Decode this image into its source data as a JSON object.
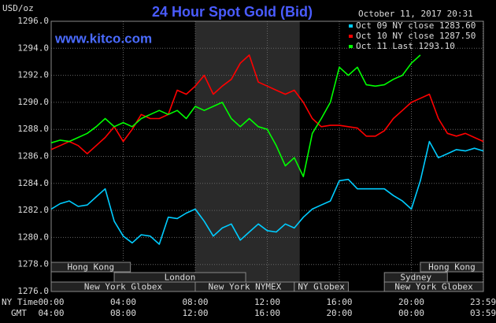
{
  "chart_data": {
    "type": "line",
    "title": "24 Hour Spot Gold (Bid)",
    "subtitle": "www.kitco.com",
    "timestamp": "October 11, 2017 20:31",
    "y_label": "USD/oz",
    "x_label": "NY Time",
    "x2_label": "GMT",
    "x": [
      0,
      0.5,
      1,
      1.5,
      2,
      2.5,
      3,
      3.5,
      4,
      4.5,
      5,
      5.5,
      6,
      6.5,
      7,
      7.5,
      8,
      8.5,
      9,
      9.5,
      10,
      10.5,
      11,
      11.5,
      12,
      12.5,
      13,
      13.5,
      14,
      14.5,
      15,
      15.5,
      16,
      16.5,
      17,
      17.5,
      18,
      18.5,
      19,
      19.5,
      20,
      20.5,
      21,
      21.5,
      22,
      22.5,
      23,
      23.5,
      24
    ],
    "series": [
      {
        "name": "Oct 09 NY close 1283.60",
        "color": "#00ccff",
        "values": [
          1282.1,
          1282.5,
          1282.7,
          1282.3,
          1282.4,
          1283.0,
          1283.6,
          1281.2,
          1280.1,
          1279.6,
          1280.2,
          1280.1,
          1279.5,
          1281.5,
          1281.4,
          1281.8,
          1282.1,
          1281.2,
          1280.1,
          1280.7,
          1281.0,
          1279.8,
          1280.4,
          1281.0,
          1280.5,
          1280.4,
          1281.0,
          1280.7,
          1281.5,
          1282.1,
          1282.4,
          1282.7,
          1284.2,
          1284.3,
          1283.6,
          1283.6,
          1283.6,
          1283.6,
          1283.1,
          1282.7,
          1282.1,
          1284.2,
          1287.1,
          1285.9,
          1286.2,
          1286.5,
          1286.4,
          1286.6,
          1286.4
        ]
      },
      {
        "name": "Oct 10 NY close 1287.50",
        "color": "#ff0000",
        "values": [
          1286.5,
          1286.8,
          1287.1,
          1286.8,
          1286.2,
          1286.8,
          1287.4,
          1288.2,
          1287.1,
          1288.0,
          1289.1,
          1288.8,
          1288.8,
          1289.1,
          1290.9,
          1290.6,
          1291.2,
          1292.0,
          1290.6,
          1291.2,
          1291.7,
          1292.9,
          1293.5,
          1291.5,
          1291.2,
          1290.9,
          1290.6,
          1290.9,
          1290.0,
          1288.8,
          1288.2,
          1288.3,
          1288.3,
          1288.2,
          1288.1,
          1287.5,
          1287.5,
          1287.9,
          1288.8,
          1289.4,
          1290.0,
          1290.3,
          1290.6,
          1288.8,
          1287.7,
          1287.5,
          1287.7,
          1287.4,
          1287.1
        ]
      },
      {
        "name": "Oct 11 Last 1293.10",
        "color": "#00ff00",
        "values": [
          1287.0,
          1287.2,
          1287.1,
          1287.4,
          1287.7,
          1288.2,
          1288.8,
          1288.2,
          1288.5,
          1288.2,
          1288.8,
          1289.1,
          1289.4,
          1289.1,
          1289.4,
          1288.8,
          1289.7,
          1289.4,
          1289.7,
          1290.0,
          1288.8,
          1288.2,
          1288.8,
          1288.2,
          1288.0,
          1286.8,
          1285.3,
          1285.9,
          1284.5,
          1287.7,
          1288.8,
          1290.0,
          1292.6,
          1292.0,
          1292.6,
          1291.3,
          1291.2,
          1291.3,
          1291.7,
          1292.0,
          1292.9,
          1293.5,
          null,
          null,
          null,
          null,
          null,
          null,
          null
        ]
      }
    ],
    "xlim": [
      0,
      24
    ],
    "ylim": [
      1276,
      1296
    ],
    "yticks": [
      {
        "value": 1276,
        "label": "1276.0"
      },
      {
        "value": 1278,
        "label": "1278.0"
      },
      {
        "value": 1280,
        "label": "1280.0"
      },
      {
        "value": 1282,
        "label": "1282.0"
      },
      {
        "value": 1284,
        "label": "1284.0"
      },
      {
        "value": 1286,
        "label": "1286.0"
      },
      {
        "value": 1288,
        "label": "1288.0"
      },
      {
        "value": 1290,
        "label": "1290.0"
      },
      {
        "value": 1292,
        "label": "1292.0"
      },
      {
        "value": 1294,
        "label": "1294.0"
      },
      {
        "value": 1296,
        "label": "1296.0"
      }
    ],
    "xticks": [
      {
        "value": 0,
        "label": "00:00"
      },
      {
        "value": 4,
        "label": "04:00"
      },
      {
        "value": 8,
        "label": "08:00"
      },
      {
        "value": 12,
        "label": "12:00"
      },
      {
        "value": 16,
        "label": "16:00"
      },
      {
        "value": 20,
        "label": "20:00"
      },
      {
        "value": 23.98,
        "label": "23:59"
      }
    ],
    "x2ticks": [
      {
        "value": 0,
        "label": "04:00"
      },
      {
        "value": 4,
        "label": "08:00"
      },
      {
        "value": 8,
        "label": "12:00"
      },
      {
        "value": 12,
        "label": "16:00"
      },
      {
        "value": 16,
        "label": "20:00"
      },
      {
        "value": 20,
        "label": "00:00"
      },
      {
        "value": 23.98,
        "label": "03:59"
      }
    ],
    "grid": true,
    "shade": {
      "start": 8,
      "end": 13.8
    },
    "sessions": [
      {
        "label": "Hong Kong",
        "row": 0,
        "start": 0,
        "end": 4.4
      },
      {
        "label": "Hong Kong",
        "row": 0,
        "start": 20.5,
        "end": 24
      },
      {
        "label": "London",
        "row": 1,
        "start": 3.5,
        "end": 10.8
      },
      {
        "label": "Sydney",
        "row": 1,
        "start": 18.5,
        "end": 22
      },
      {
        "label": "New York Globex",
        "row": 2,
        "start": 0,
        "end": 8
      },
      {
        "label": "New York NYMEX",
        "row": 2,
        "start": 8,
        "end": 13.5
      },
      {
        "label": "NY Globex",
        "row": 2,
        "start": 13.5,
        "end": 16.5
      },
      {
        "label": "New York Globex",
        "row": 2,
        "start": 18.5,
        "end": 24
      }
    ]
  }
}
